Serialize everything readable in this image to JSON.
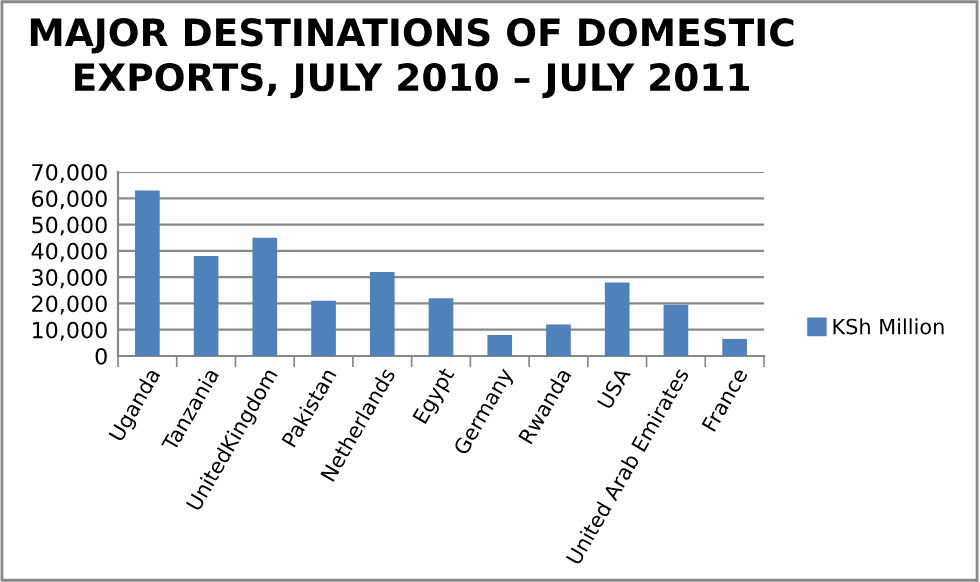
{
  "chart_data": {
    "type": "bar",
    "title": "MAJOR DESTINATIONS OF DOMESTIC\nEXPORTS, JULY 2010 – JULY 2011",
    "categories": [
      "Uganda",
      "Tanzania",
      "UnitedKingdom",
      "Pakistan",
      "Netherlands",
      "Egypt",
      "Germany",
      "Rwanda",
      "USA",
      "United Arab Emirates",
      "France"
    ],
    "series": [
      {
        "name": "KSh Million",
        "color": "#4f81bd",
        "values": [
          63000,
          38000,
          45000,
          21000,
          32000,
          22000,
          8000,
          12000,
          28000,
          19500,
          6500
        ]
      }
    ],
    "ylim": [
      0,
      70000
    ],
    "yticks": [
      {
        "value": 0,
        "label": "0"
      },
      {
        "value": 10000,
        "label": "10,000"
      },
      {
        "value": 20000,
        "label": "20,000"
      },
      {
        "value": 30000,
        "label": "30,000"
      },
      {
        "value": 40000,
        "label": "40,000"
      },
      {
        "value": 50000,
        "label": "50,000"
      },
      {
        "value": 60000,
        "label": "60,000"
      },
      {
        "value": 70000,
        "label": "70,000"
      }
    ],
    "grid": "y",
    "legend": "right"
  }
}
